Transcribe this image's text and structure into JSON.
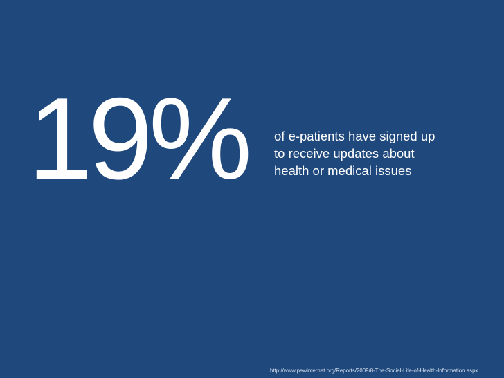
{
  "slide": {
    "statistic": "19%",
    "description_lines": [
      "of e-patients have signed up",
      "to receive updates about",
      "health or medical issues"
    ],
    "source": "http://www.pewinternet.org/Reports/2009/8-The-Social-Life-of-Health-Information.aspx"
  }
}
